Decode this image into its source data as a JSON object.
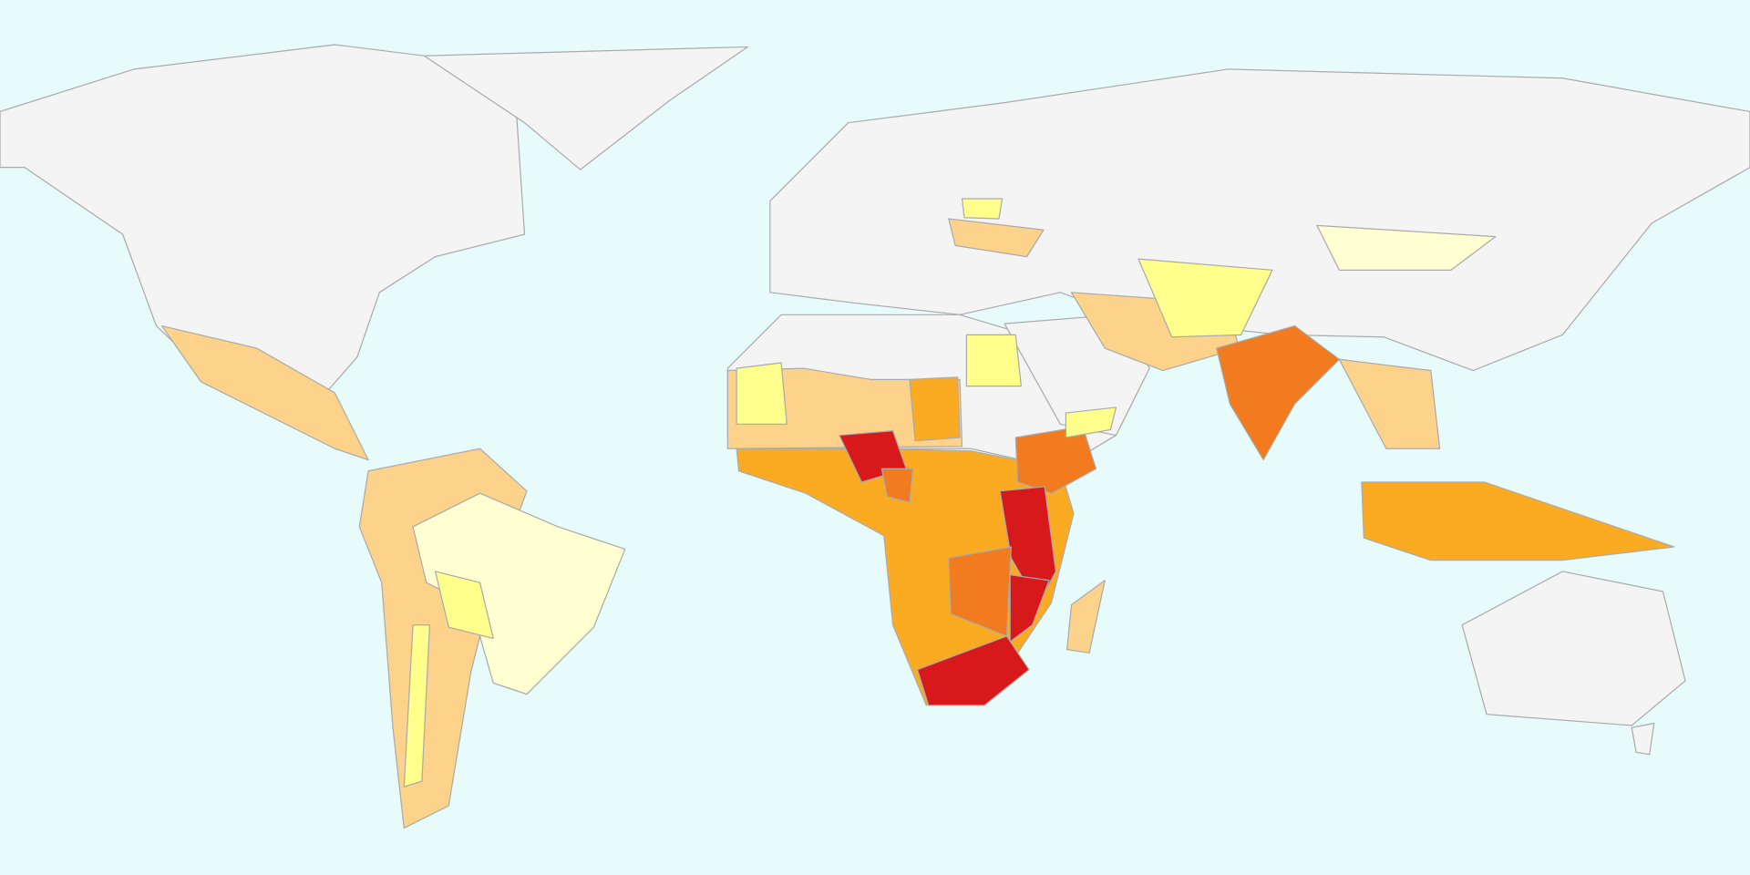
{
  "map": {
    "ocean": "#e8fbfb",
    "land": "#f4f4f4",
    "border": "#aaaaaa",
    "palette": [
      "#ffffd2",
      "#ffff8c",
      "#fdd38c",
      "#fbab22",
      "#f27a1f",
      "#d7191c"
    ]
  }
}
